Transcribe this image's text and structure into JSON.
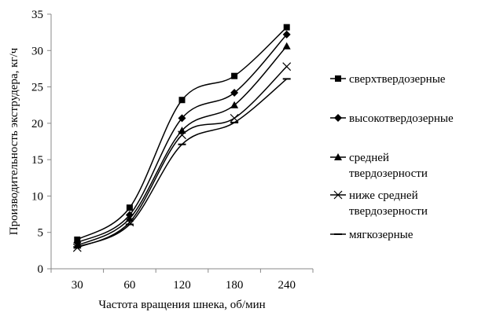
{
  "chart_data": {
    "type": "line",
    "xlabel": "Частота вращения шнека, об/мин",
    "ylabel": "Производительность экструдера, кг/ч",
    "categories": [
      "30",
      "60",
      "120",
      "180",
      "240"
    ],
    "ylim": [
      0,
      35
    ],
    "yticks": [
      "0",
      "5",
      "10",
      "15",
      "20",
      "25",
      "30",
      "35"
    ],
    "grid": false,
    "legend_position": "right",
    "series": [
      {
        "name": "сверхтвердозерные",
        "marker": "square",
        "values": [
          4.0,
          8.4,
          23.2,
          26.5,
          33.2
        ]
      },
      {
        "name": "высокотвердозерные",
        "marker": "diamond",
        "values": [
          3.6,
          7.4,
          20.7,
          24.2,
          32.2
        ]
      },
      {
        "name": "средней твердозерности",
        "marker": "triangle",
        "values": [
          3.2,
          6.9,
          19.0,
          22.5,
          30.6
        ]
      },
      {
        "name": "ниже средней твердозерности",
        "marker": "x",
        "values": [
          2.9,
          6.4,
          18.4,
          20.7,
          27.8
        ]
      },
      {
        "name": "мягкозерные",
        "marker": "dash",
        "values": [
          3.0,
          6.1,
          17.1,
          20.1,
          26.1
        ]
      }
    ],
    "legend_lines": [
      [
        "сверхтвердозерные"
      ],
      [
        "высокотвердозерные"
      ],
      [
        "средней",
        "твердозерности"
      ],
      [
        "ниже средней",
        "твердозерности"
      ],
      [
        "мягкозерные"
      ]
    ]
  }
}
